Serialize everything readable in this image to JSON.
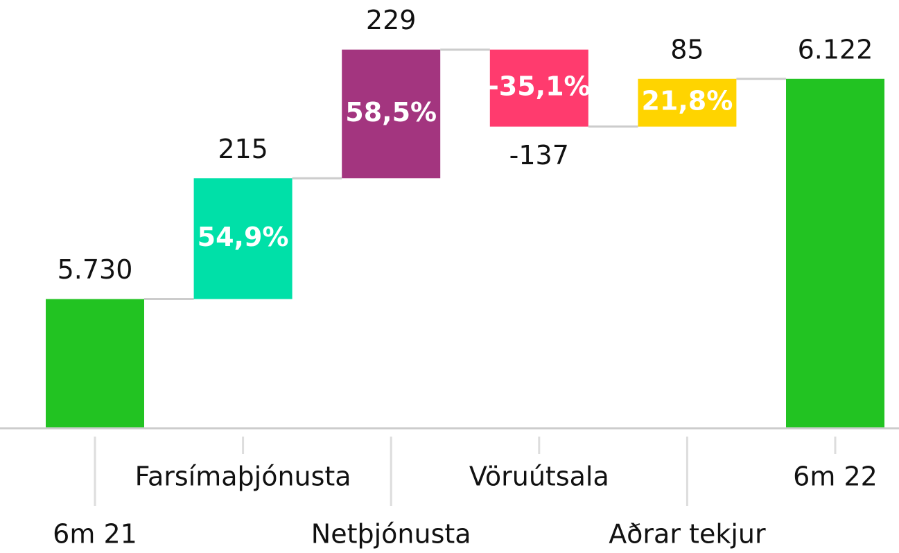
{
  "chart_data": {
    "type": "waterfall",
    "categories": [
      "6m 21",
      "Farsímaþjónusta",
      "Netþjónusta",
      "Vöruútsala",
      "Aðrar tekjur",
      "6m 22"
    ],
    "values": [
      5730,
      215,
      229,
      -137,
      85,
      6122
    ],
    "value_labels": [
      "5.730",
      "215",
      "229",
      "-137",
      "85",
      "6.122"
    ],
    "measure": [
      "absolute",
      "relative",
      "relative",
      "relative",
      "relative",
      "absolute"
    ],
    "shares": [
      null,
      54.9,
      58.5,
      -35.1,
      21.8,
      null
    ],
    "share_labels": [
      null,
      "54,9%",
      "58,5%",
      "-35,1%",
      "21,8%",
      null
    ],
    "colors": [
      "#22c322",
      "#00e0a8",
      "#a3357f",
      "#ff3b6e",
      "#ffd400",
      "#22c322"
    ],
    "ylim": [
      5500,
      6250
    ]
  }
}
